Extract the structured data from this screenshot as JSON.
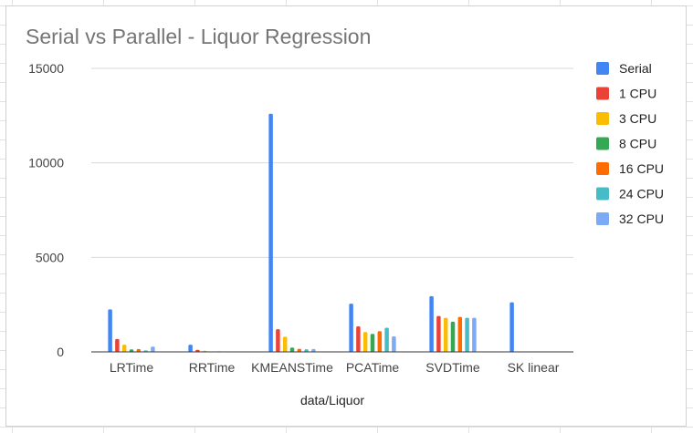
{
  "chart_data": {
    "type": "bar",
    "title": "Serial vs Parallel - Liquor Regression",
    "xlabel": "data/Liquor",
    "ylabel": "",
    "ylim": [
      0,
      15000
    ],
    "yticks": [
      0,
      5000,
      10000,
      15000
    ],
    "grid": true,
    "legend_position": "right",
    "categories": [
      "LRTime",
      "RRTime",
      "KMEANSTime",
      "PCATime",
      "SVDTime",
      "SK linear"
    ],
    "series": [
      {
        "name": "Serial",
        "color": "#4285f4",
        "values": [
          2250,
          380,
          12600,
          2550,
          2950,
          2620
        ]
      },
      {
        "name": "1 CPU",
        "color": "#ea4335",
        "values": [
          680,
          110,
          1200,
          1350,
          1900,
          null
        ]
      },
      {
        "name": "3 CPU",
        "color": "#fbbc04",
        "values": [
          380,
          60,
          800,
          1050,
          1800,
          null
        ]
      },
      {
        "name": "8 CPU",
        "color": "#34a853",
        "values": [
          130,
          20,
          230,
          950,
          1600,
          null
        ]
      },
      {
        "name": "16 CPU",
        "color": "#ff6d01",
        "values": [
          150,
          30,
          160,
          1100,
          1850,
          null
        ]
      },
      {
        "name": "24 CPU",
        "color": "#46bdc6",
        "values": [
          80,
          10,
          140,
          1280,
          1800,
          null
        ]
      },
      {
        "name": "32 CPU",
        "color": "#7baaf7",
        "values": [
          280,
          15,
          150,
          820,
          1800,
          null
        ]
      }
    ]
  }
}
